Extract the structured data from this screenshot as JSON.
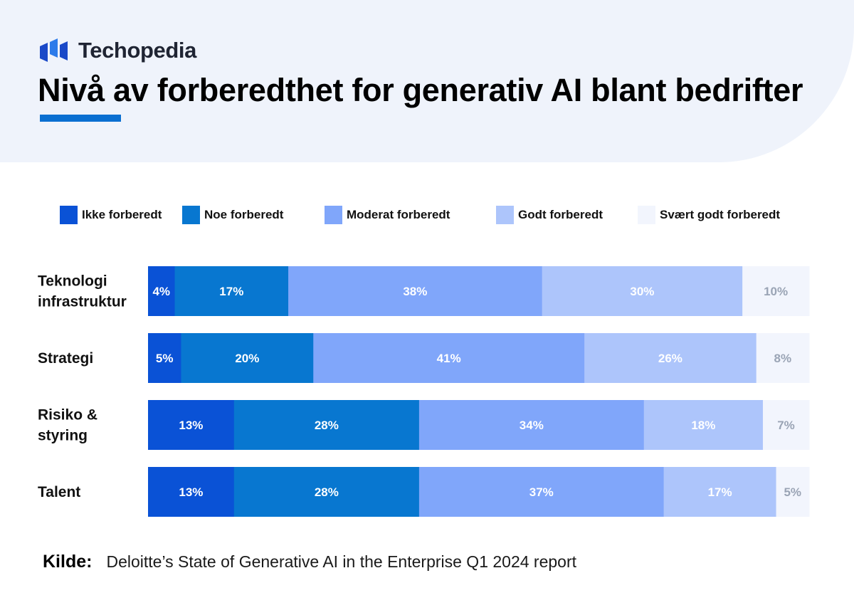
{
  "brand": {
    "name": "Techopedia",
    "logo_icon": "techopedia-logo-icon"
  },
  "title": "Nivå av forberedthet for generativ AI blant bedrifter",
  "source": {
    "label": "Kilde:",
    "text": "Deloitte’s State of Generative AI in the Enterprise Q1 2024 report"
  },
  "colors": {
    "accent": "#0a6fd1",
    "segments": [
      "#0a52d6",
      "#0877d0",
      "#80a6fa",
      "#adc5fb",
      "#f2f5fd"
    ],
    "segment_label_colors": [
      "#ffffff",
      "#ffffff",
      "#ffffff",
      "#ffffff",
      "#9aa4b5"
    ]
  },
  "chart_data": {
    "type": "bar",
    "orientation": "horizontal",
    "stacked": true,
    "unit": "%",
    "legend_position": "top",
    "categories": [
      [
        "Teknologi",
        "infrastruktur"
      ],
      [
        "Strategi"
      ],
      [
        "Risiko &",
        "styring"
      ],
      [
        "Talent"
      ]
    ],
    "series": [
      {
        "name": "Ikke forberedt",
        "values": [
          4,
          5,
          13,
          13
        ]
      },
      {
        "name": "Noe forberedt",
        "values": [
          17,
          20,
          28,
          28
        ]
      },
      {
        "name": "Moderat forberedt",
        "values": [
          38,
          41,
          34,
          37
        ]
      },
      {
        "name": "Godt forberedt",
        "values": [
          30,
          26,
          18,
          17
        ]
      },
      {
        "name": "Svært godt forberedt",
        "values": [
          10,
          8,
          7,
          5
        ]
      }
    ]
  }
}
